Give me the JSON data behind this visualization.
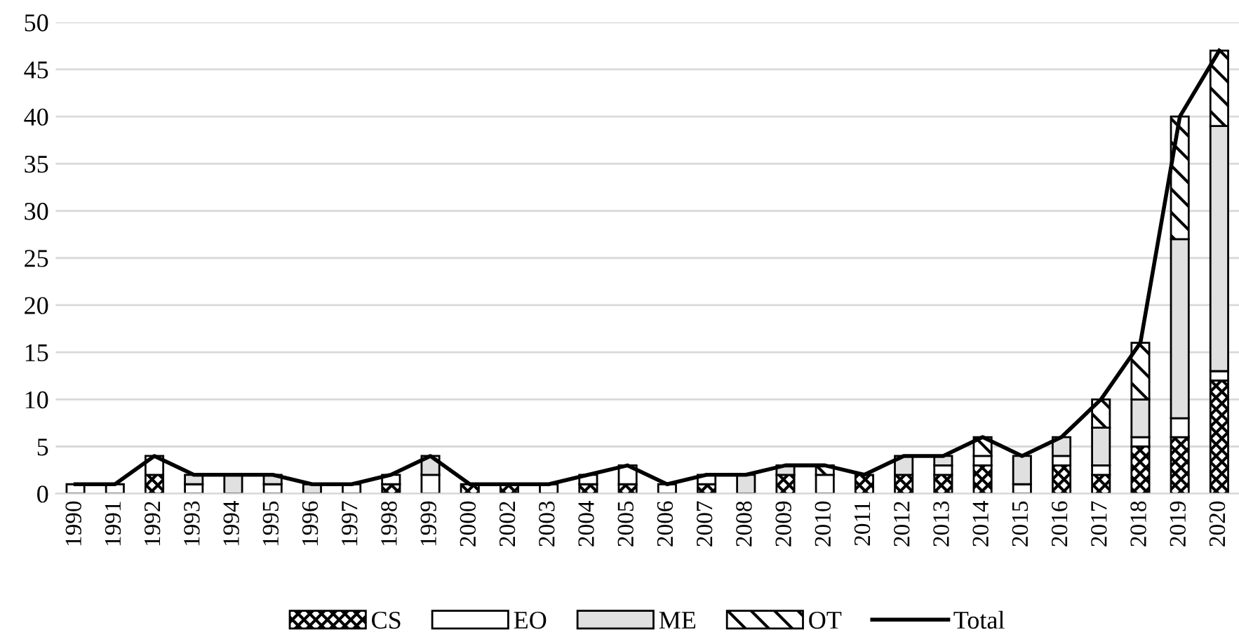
{
  "chart_data": {
    "type": "bar",
    "stacked": true,
    "categories": [
      "1990",
      "1991",
      "1992",
      "1993",
      "1994",
      "1995",
      "1996",
      "1997",
      "1998",
      "1999",
      "2000",
      "2002",
      "2003",
      "2004",
      "2005",
      "2006",
      "2007",
      "2008",
      "2009",
      "2010",
      "2011",
      "2012",
      "2013",
      "2014",
      "2015",
      "2016",
      "2017",
      "2018",
      "2019",
      "2020"
    ],
    "series": [
      {
        "name": "CS",
        "color": "#000000",
        "values": [
          0,
          0,
          2,
          0,
          0,
          0,
          0,
          0,
          1,
          0,
          1,
          1,
          0,
          1,
          1,
          0,
          1,
          0,
          2,
          0,
          2,
          2,
          2,
          3,
          0,
          3,
          2,
          5,
          6,
          12
        ]
      },
      {
        "name": "EO",
        "color": "#ffffff",
        "values": [
          1,
          1,
          2,
          1,
          0,
          1,
          0,
          1,
          1,
          2,
          0,
          0,
          1,
          1,
          2,
          1,
          1,
          0,
          0,
          2,
          0,
          0,
          1,
          1,
          1,
          1,
          1,
          1,
          2,
          1
        ]
      },
      {
        "name": "ME",
        "color": "#e0e0e0",
        "values": [
          0,
          0,
          0,
          1,
          2,
          1,
          1,
          0,
          0,
          2,
          0,
          0,
          0,
          0,
          0,
          0,
          0,
          2,
          1,
          0,
          0,
          2,
          1,
          0,
          3,
          2,
          4,
          4,
          19,
          26
        ]
      },
      {
        "name": "OT",
        "color": "#000000",
        "values": [
          0,
          0,
          0,
          0,
          0,
          0,
          0,
          0,
          0,
          0,
          0,
          0,
          0,
          0,
          0,
          0,
          0,
          0,
          0,
          1,
          0,
          0,
          0,
          2,
          0,
          0,
          3,
          6,
          13,
          8
        ]
      },
      {
        "name": "Total",
        "type": "line",
        "color": "#000000",
        "values": [
          1,
          1,
          4,
          2,
          2,
          2,
          1,
          1,
          2,
          4,
          1,
          1,
          1,
          2,
          3,
          1,
          2,
          2,
          3,
          3,
          2,
          4,
          4,
          6,
          4,
          6,
          10,
          16,
          40,
          47
        ]
      }
    ],
    "ylim": [
      0,
      50
    ],
    "yticks": [
      0,
      5,
      10,
      15,
      20,
      25,
      30,
      35,
      40,
      45,
      50
    ],
    "grid": "y",
    "legend": "bottom",
    "marker": "none",
    "line_style": "solid"
  }
}
